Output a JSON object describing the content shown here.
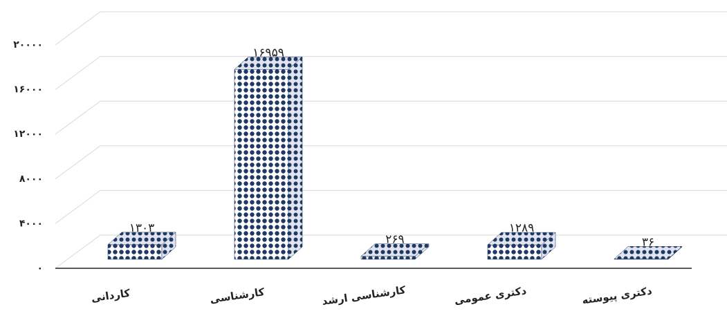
{
  "chart_data": {
    "type": "bar3d",
    "categories": [
      "کاردانی",
      "کارشناسی",
      "کارشناسی ارشد",
      "دکتری عمومی",
      "دکتری پیوسته"
    ],
    "values": [
      1303,
      16959,
      269,
      1289,
      36
    ],
    "value_labels": [
      "۱۳۰۳",
      "۱۶۹۵۹",
      "۲۶۹",
      "۱۲۸۹",
      "۳۶"
    ],
    "color": "#1f3864",
    "ylim": [
      0,
      20000
    ],
    "yticks": [
      {
        "value": 0,
        "label": "۰"
      },
      {
        "value": 4000,
        "label": "۴۰۰۰"
      },
      {
        "value": 8000,
        "label": "۸۰۰۰"
      },
      {
        "value": 12000,
        "label": "۱۲۰۰۰"
      },
      {
        "value": 16000,
        "label": "۱۶۰۰۰"
      },
      {
        "value": 20000,
        "label": "۲۰۰۰۰"
      }
    ],
    "grid": true
  }
}
